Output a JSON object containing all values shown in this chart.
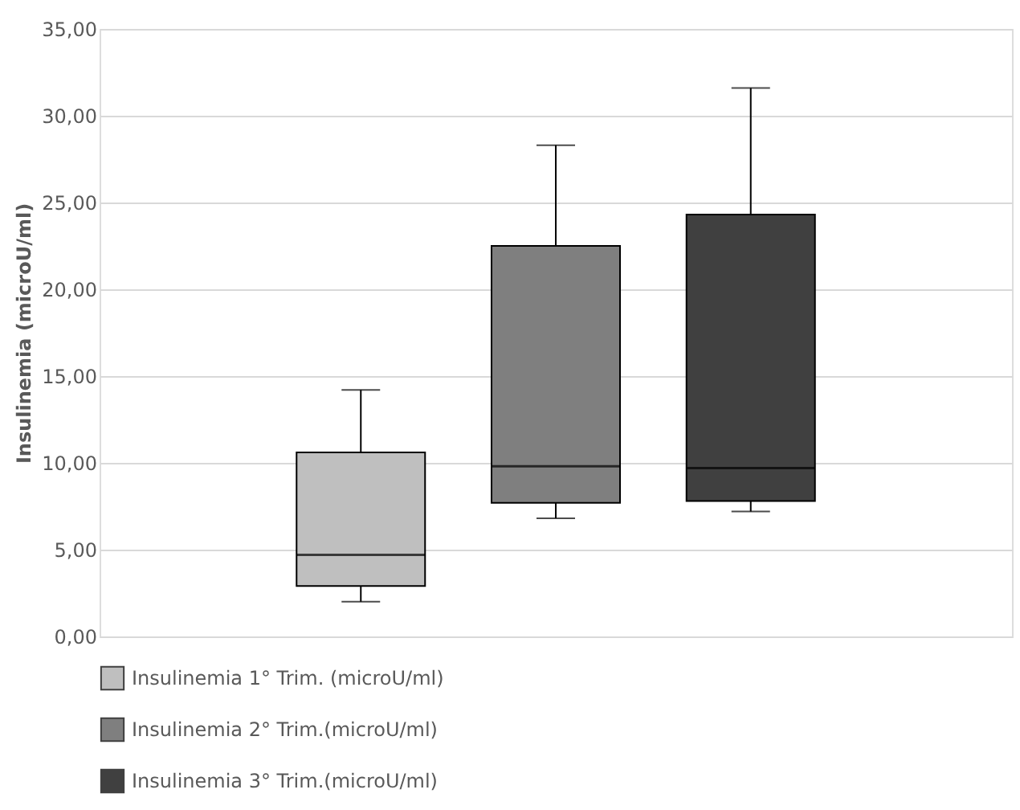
{
  "chart_data": {
    "type": "box",
    "ylabel": "Insulinemia (microU/ml)",
    "categories": [
      null
    ],
    "ylim": [
      0,
      35
    ],
    "yticks": [
      {
        "value": 0,
        "label": "0,00"
      },
      {
        "value": 5,
        "label": "5,00"
      },
      {
        "value": 10,
        "label": "10,00"
      },
      {
        "value": 15,
        "label": "15,00"
      },
      {
        "value": 20,
        "label": "20,00"
      },
      {
        "value": 25,
        "label": "25,00"
      },
      {
        "value": 30,
        "label": "30,00"
      },
      {
        "value": 35,
        "label": "35,00"
      }
    ],
    "grid": "y",
    "legend": "bottom",
    "tick_labels": "y",
    "series": [
      {
        "name": "Insulinemia 1° Trim. (microU/ml)",
        "color": "#bfbfbf",
        "boxes": [
          {
            "low": 2.0,
            "q1": 2.9,
            "median": 4.7,
            "q3": 10.6,
            "high": 14.2
          }
        ]
      },
      {
        "name": "Insulinemia 2° Trim.(microU/ml)",
        "color": "#7f7f7f",
        "boxes": [
          {
            "low": 6.8,
            "q1": 7.7,
            "median": 9.8,
            "q3": 22.5,
            "high": 28.3
          }
        ]
      },
      {
        "name": "Insulinemia 3° Trim.(microU/ml)",
        "color": "#404040",
        "boxes": [
          {
            "low": 7.2,
            "q1": 7.8,
            "median": 9.7,
            "q3": 24.3,
            "high": 31.6
          }
        ]
      }
    ]
  }
}
